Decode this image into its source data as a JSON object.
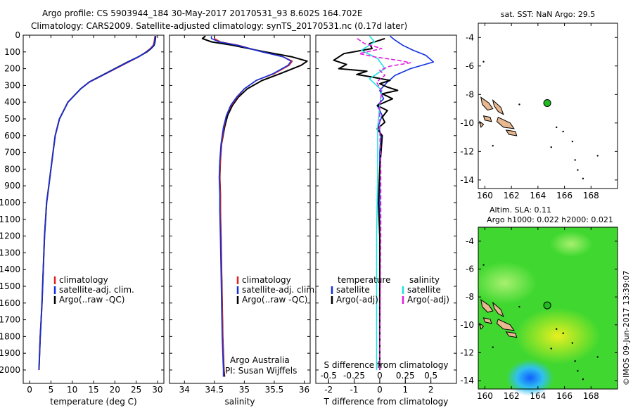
{
  "header": {
    "line1": "Argo profile: CS 5903944_184 30-May-2017 20170531_93 8.602S 164.702E",
    "line2": "Climatology: CARS2009. Satellite-adjusted climatology: synTS_20170531.nc (0.17d later)"
  },
  "panels": {
    "temperature": {
      "xlabel": "temperature (deg C)",
      "xticks": [
        "0",
        "5",
        "10",
        "15",
        "20",
        "25",
        "30"
      ],
      "legend": [
        "climatology",
        "satellite-adj. clim.",
        "Argo(..raw -QC)"
      ]
    },
    "salinity": {
      "xlabel": "salinity",
      "xticks": [
        "34",
        "34.5",
        "35",
        "35.5",
        "36"
      ],
      "legend": [
        "climatology",
        "satellite-adj. clim.",
        "Argo(..raw -QC)"
      ],
      "credit1": "Argo Australia",
      "credit2": "PI: Susan Wijffels"
    },
    "difference": {
      "xlabel": "T difference from climatology",
      "xlabel_top": "S difference from climatology",
      "s_ticks": [
        "-0.5",
        "-0.25",
        "0",
        "0.25",
        "0.5"
      ],
      "t_ticks": [
        "-2",
        "-1",
        "0",
        "1",
        "2"
      ],
      "legend_t_title": "temperature",
      "legend_s_title": "salinity",
      "legend_t": [
        "satellite",
        "Argo(-adj)"
      ],
      "legend_s": [
        "satellite",
        "Argo(-adj)"
      ]
    },
    "map_top": {
      "title": "sat. SST: NaN Argo: 29.5"
    },
    "map_bottom": {
      "title1": "Altim. SLA: 0.11",
      "title2": "Argo h1000: 0.022 h2000: 0.021"
    }
  },
  "depth_ticks": [
    "0",
    "100",
    "200",
    "300",
    "400",
    "500",
    "600",
    "700",
    "800",
    "900",
    "1000",
    "1100",
    "1200",
    "1300",
    "1400",
    "1500",
    "1600",
    "1700",
    "1800",
    "1900",
    "2000"
  ],
  "map_lat_ticks": [
    "-4",
    "-6",
    "-8",
    "-10",
    "-12",
    "-14"
  ],
  "map_lon_ticks": [
    "160",
    "162",
    "164",
    "166",
    "168"
  ],
  "timestamp": "©IMOS 09-Jun-2017 13:39:07",
  "colors": {
    "climatology": "#e02020",
    "satellite": "#1030e0",
    "argo": "#000000",
    "sal_satellite": "#20e0e0",
    "sal_argo": "#e020e0",
    "float_marker": "#22bb22"
  },
  "chart_data": [
    {
      "type": "line",
      "title": "temperature",
      "xlabel": "temperature (deg C)",
      "ylabel": "",
      "xlim": [
        -1.5,
        31.5
      ],
      "ylim": [
        2080,
        0
      ],
      "y_reversed": true,
      "series": [
        {
          "name": "Argo(..raw -QC)",
          "color": "#000000",
          "x": [
            29.6,
            29.5,
            29.4,
            29.2,
            28.5,
            27.5,
            25.5,
            23.0,
            20.0,
            17.0,
            14.0,
            12.0,
            10.5,
            9.0,
            8.0,
            7.0,
            6.0,
            5.5,
            5.0,
            4.5,
            4.0,
            3.5,
            3.2,
            2.9,
            2.7,
            2.5,
            2.35,
            2.2
          ],
          "y": [
            5,
            20,
            40,
            60,
            80,
            100,
            130,
            160,
            200,
            240,
            280,
            320,
            360,
            400,
            450,
            500,
            600,
            700,
            800,
            900,
            1000,
            1200,
            1400,
            1600,
            1700,
            1800,
            1900,
            2000
          ]
        },
        {
          "name": "climatology",
          "color": "#e02020",
          "x": [
            29.4,
            29.3,
            29.2,
            29.0,
            28.3,
            27.3,
            25.6,
            23.3,
            20.2,
            17.2,
            14.1,
            12.0,
            10.5,
            9.0,
            8.0,
            7.0,
            6.0,
            5.5,
            5.0,
            4.5,
            4.0,
            3.5,
            3.2,
            2.9,
            2.7,
            2.5,
            2.35,
            2.2
          ],
          "y": [
            5,
            20,
            40,
            60,
            80,
            100,
            130,
            160,
            200,
            240,
            280,
            320,
            360,
            400,
            450,
            500,
            600,
            700,
            800,
            900,
            1000,
            1200,
            1400,
            1600,
            1700,
            1800,
            1900,
            2000
          ]
        },
        {
          "name": "satellite-adj. clim.",
          "color": "#1030e0",
          "x": [
            29.5,
            29.4,
            29.3,
            29.1,
            28.4,
            27.4,
            25.5,
            23.1,
            20.1,
            17.1,
            14.0,
            12.0,
            10.5,
            9.0,
            8.0,
            7.0,
            6.0,
            5.5,
            5.0,
            4.5,
            4.0,
            3.5,
            3.2,
            2.9,
            2.7,
            2.5,
            2.35,
            2.2
          ],
          "y": [
            5,
            20,
            40,
            60,
            80,
            100,
            130,
            160,
            200,
            240,
            280,
            320,
            360,
            400,
            450,
            500,
            600,
            700,
            800,
            900,
            1000,
            1200,
            1400,
            1600,
            1700,
            1800,
            1900,
            2000
          ]
        }
      ]
    },
    {
      "type": "line",
      "title": "salinity",
      "xlabel": "salinity",
      "ylabel": "",
      "xlim": [
        33.75,
        36.1
      ],
      "ylim": [
        2080,
        0
      ],
      "y_reversed": true,
      "series": [
        {
          "name": "Argo(..raw -QC)",
          "color": "#000000",
          "x": [
            34.35,
            34.3,
            34.45,
            34.8,
            35.35,
            35.8,
            36.05,
            35.95,
            35.6,
            35.3,
            35.05,
            34.9,
            34.8,
            34.72,
            34.67,
            34.62,
            34.6,
            34.59,
            34.6,
            34.6,
            34.61,
            34.62,
            34.63,
            34.64,
            34.65,
            34.66,
            34.67
          ],
          "y": [
            5,
            20,
            40,
            60,
            100,
            130,
            155,
            180,
            230,
            270,
            320,
            370,
            420,
            480,
            550,
            650,
            750,
            850,
            950,
            1050,
            1200,
            1400,
            1600,
            1800,
            1900,
            2000,
            2040
          ]
        },
        {
          "name": "climatology",
          "color": "#e02020",
          "x": [
            34.5,
            34.5,
            34.6,
            34.9,
            35.3,
            35.65,
            35.8,
            35.75,
            35.5,
            35.2,
            35.0,
            34.88,
            34.78,
            34.7,
            34.66,
            34.62,
            34.6,
            34.59,
            34.6,
            34.6,
            34.61,
            34.62,
            34.63,
            34.64,
            34.65,
            34.66,
            34.66
          ],
          "y": [
            5,
            20,
            40,
            60,
            100,
            130,
            155,
            180,
            230,
            270,
            320,
            370,
            420,
            480,
            550,
            650,
            750,
            850,
            950,
            1050,
            1200,
            1400,
            1600,
            1800,
            1900,
            2000,
            2040
          ]
        },
        {
          "name": "satellite-adj. clim.",
          "color": "#1030e0",
          "x": [
            34.45,
            34.45,
            34.58,
            34.88,
            35.3,
            35.65,
            35.78,
            35.73,
            35.48,
            35.2,
            35.0,
            34.87,
            34.77,
            34.7,
            34.65,
            34.61,
            34.59,
            34.58,
            34.59,
            34.59,
            34.6,
            34.61,
            34.62,
            34.63,
            34.64,
            34.65,
            34.65
          ],
          "y": [
            5,
            20,
            40,
            60,
            100,
            130,
            155,
            180,
            230,
            270,
            320,
            370,
            420,
            480,
            550,
            650,
            750,
            850,
            950,
            1050,
            1200,
            1400,
            1600,
            1800,
            1900,
            2000,
            2040
          ]
        }
      ]
    },
    {
      "type": "line",
      "title": "difference from climatology",
      "xlabel": "T difference from climatology",
      "xlabel_top": "S difference from climatology",
      "xlim": [
        -2.5,
        3.0
      ],
      "s_xlim": [
        -0.625,
        0.75
      ],
      "ylim": [
        2080,
        0
      ],
      "y_reversed": true,
      "series": [
        {
          "name": "temperature satellite",
          "color": "#1030e0",
          "units": "T",
          "x": [
            0.4,
            0.6,
            0.9,
            1.3,
            1.8,
            2.1,
            1.2,
            0.6,
            0.3,
            0.0,
            0.15,
            -0.1,
            0.1,
            -0.05,
            0.05,
            0.0,
            0.0,
            0.0,
            0.0,
            0.0,
            0.0,
            0.0
          ],
          "y": [
            5,
            30,
            60,
            90,
            120,
            160,
            200,
            240,
            280,
            330,
            380,
            420,
            480,
            540,
            600,
            700,
            800,
            1000,
            1300,
            1600,
            1900,
            2000
          ]
        },
        {
          "name": "temperature Argo(-adj)",
          "color": "#000000",
          "units": "T",
          "x": [
            0.2,
            -0.4,
            -0.3,
            -1.4,
            -1.8,
            -1.3,
            -1.6,
            -0.5,
            -0.9,
            -0.3,
            0.4,
            0.0,
            0.3,
            0.7,
            0.1,
            0.5,
            -0.1,
            0.3,
            0.1,
            0.2,
            -0.1,
            0.1,
            0.05,
            0.0,
            -0.05,
            0.0,
            0.0,
            0.0,
            0.0
          ],
          "y": [
            20,
            50,
            80,
            110,
            150,
            175,
            200,
            215,
            235,
            250,
            270,
            290,
            310,
            330,
            350,
            380,
            420,
            450,
            490,
            520,
            560,
            600,
            700,
            800,
            1000,
            1200,
            1500,
            1800,
            2000
          ]
        },
        {
          "name": "salinity satellite",
          "color": "#20e0e0",
          "units": "S",
          "x": [
            -0.1,
            -0.05,
            -0.18,
            -0.02,
            0.05,
            -0.1,
            0.02,
            0.0,
            -0.02,
            -0.02,
            -0.03,
            -0.03,
            -0.03
          ],
          "y": [
            5,
            40,
            90,
            140,
            200,
            260,
            330,
            420,
            550,
            800,
            1200,
            1600,
            2000
          ]
        },
        {
          "name": "salinity Argo(-adj)",
          "color": "#e020e0",
          "units": "S",
          "x": [
            -0.22,
            -0.15,
            0.02,
            -0.2,
            -0.05,
            0.18,
            0.3,
            0.1,
            0.0,
            0.05,
            -0.03,
            0.02,
            0.0,
            0.0,
            0.01,
            0.01,
            0.0
          ],
          "y": [
            20,
            50,
            80,
            110,
            130,
            150,
            165,
            185,
            210,
            240,
            280,
            340,
            420,
            550,
            800,
            1200,
            2000
          ]
        }
      ]
    }
  ],
  "maps": {
    "lon_range": [
      159.5,
      170
    ],
    "lat_range": [
      -14.6,
      -3.0
    ],
    "float": {
      "lon": 164.702,
      "lat": -8.602
    }
  }
}
